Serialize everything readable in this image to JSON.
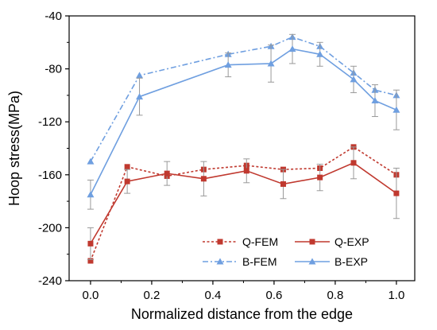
{
  "chart_data": {
    "type": "line",
    "xlabel": "Normalized distance from the edge",
    "ylabel": "Hoop stress(MPa)",
    "xlim": [
      -0.07,
      1.06
    ],
    "ylim": [
      -240,
      -40
    ],
    "xticks": [
      0.0,
      0.2,
      0.4,
      0.6,
      0.8,
      1.0
    ],
    "xtick_labels": [
      "0.0",
      "0.2",
      "0.4",
      "0.6",
      "0.8",
      "1.0"
    ],
    "yticks": [
      -240,
      -200,
      -160,
      -120,
      -80,
      -40
    ],
    "ytick_labels": [
      "-240",
      "-200",
      "-160",
      "-120",
      "-80",
      "-40"
    ],
    "grid": false,
    "legend_position": "bottom-right",
    "series": [
      {
        "name": "Q-FEM",
        "color": "#c0392f",
        "marker": "square",
        "dash": "dotted",
        "x": [
          0.0,
          0.12,
          0.25,
          0.37,
          0.51,
          0.63,
          0.75,
          0.86,
          1.0
        ],
        "y": [
          -225,
          -154,
          -161,
          -156,
          -153,
          -156,
          -155,
          -139,
          -160
        ],
        "err": [
          0,
          0,
          0,
          0,
          0,
          0,
          0,
          0,
          0
        ]
      },
      {
        "name": "Q-EXP",
        "color": "#c0392f",
        "marker": "square",
        "dash": "solid",
        "x": [
          0.0,
          0.12,
          0.25,
          0.37,
          0.51,
          0.63,
          0.75,
          0.86,
          1.0
        ],
        "y": [
          -212,
          -165,
          -159,
          -163,
          -157,
          -167,
          -162,
          -151,
          -174
        ],
        "err": [
          12,
          9,
          9,
          13,
          9,
          11,
          10,
          12,
          19
        ]
      },
      {
        "name": "B-FEM",
        "color": "#6f9fe0",
        "marker": "triangle",
        "dash": "dashdot",
        "x": [
          0.0,
          0.16,
          0.45,
          0.59,
          0.66,
          0.75,
          0.86,
          0.93,
          1.0
        ],
        "y": [
          -150,
          -85,
          -69,
          -63,
          -56,
          -63,
          -83,
          -96,
          -100
        ],
        "err": [
          0,
          0,
          0,
          0,
          0,
          0,
          0,
          0,
          0
        ]
      },
      {
        "name": "B-EXP",
        "color": "#6f9fe0",
        "marker": "triangle",
        "dash": "solid",
        "x": [
          0.0,
          0.16,
          0.45,
          0.59,
          0.66,
          0.75,
          0.86,
          0.93,
          1.0
        ],
        "y": [
          -175,
          -101,
          -77,
          -76,
          -65,
          -69,
          -88,
          -104,
          -111
        ],
        "err": [
          11,
          14,
          9,
          14,
          11,
          9,
          10,
          12,
          15
        ]
      }
    ]
  }
}
